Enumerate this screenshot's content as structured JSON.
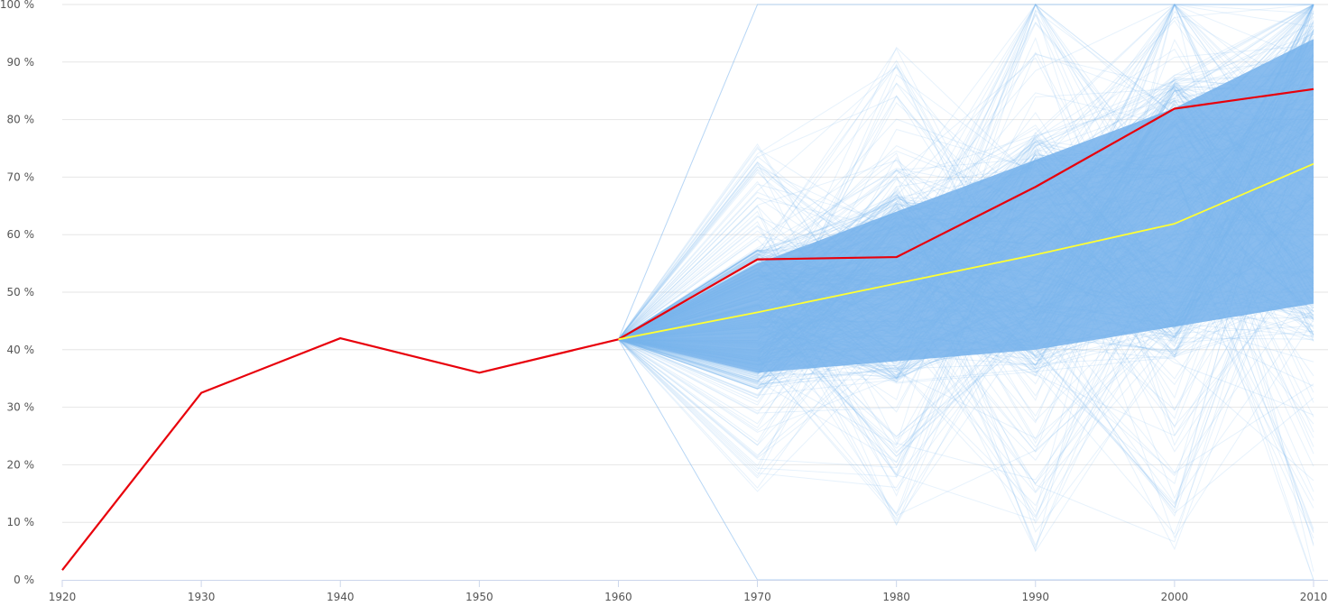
{
  "chart_data": {
    "type": "line",
    "title": "",
    "xlabel": "",
    "ylabel": "",
    "x": [
      1920,
      1930,
      1940,
      1950,
      1960,
      1970,
      1980,
      1990,
      2000,
      2010
    ],
    "x_tick_labels": [
      "1920",
      "1930",
      "1940",
      "1950",
      "1960",
      "1970",
      "1980",
      "1990",
      "2000",
      "2010"
    ],
    "y_tick_labels": [
      "0 %",
      "10 %",
      "20 %",
      "30 %",
      "40 %",
      "50 %",
      "60 %",
      "70 %",
      "80 %",
      "90 %",
      "100 %"
    ],
    "xlim": [
      1920,
      2010
    ],
    "ylim": [
      0,
      100
    ],
    "grid": "horizontal",
    "legend": "none",
    "series": [
      {
        "color": "#e8000b",
        "x": [
          1920,
          1930,
          1940,
          1950,
          1960,
          1970,
          1980,
          1990,
          2000,
          2010
        ],
        "values": [
          1.7,
          32.5,
          42.0,
          36.0,
          41.8,
          55.7,
          56.1,
          68.3,
          81.9,
          85.3
        ]
      },
      {
        "color": "#ffff33",
        "x": [
          1960,
          1970,
          1980,
          1990,
          2000,
          2010
        ],
        "values": [
          41.8,
          46.5,
          51.5,
          56.5,
          61.9,
          72.3
        ]
      }
    ],
    "simulation_band": {
      "color": "#7cb5ec",
      "x": [
        1960,
        1970,
        1980,
        1990,
        2000,
        2010
      ],
      "start_value": 41.8,
      "dense_lower": [
        41.8,
        36,
        38,
        40,
        44,
        48
      ],
      "dense_upper": [
        41.8,
        55,
        64,
        73,
        82,
        94
      ],
      "envelope_lower": [
        41.8,
        0,
        0,
        0,
        0,
        0
      ],
      "envelope_upper": [
        41.8,
        100,
        100,
        100,
        100,
        100
      ]
    }
  }
}
